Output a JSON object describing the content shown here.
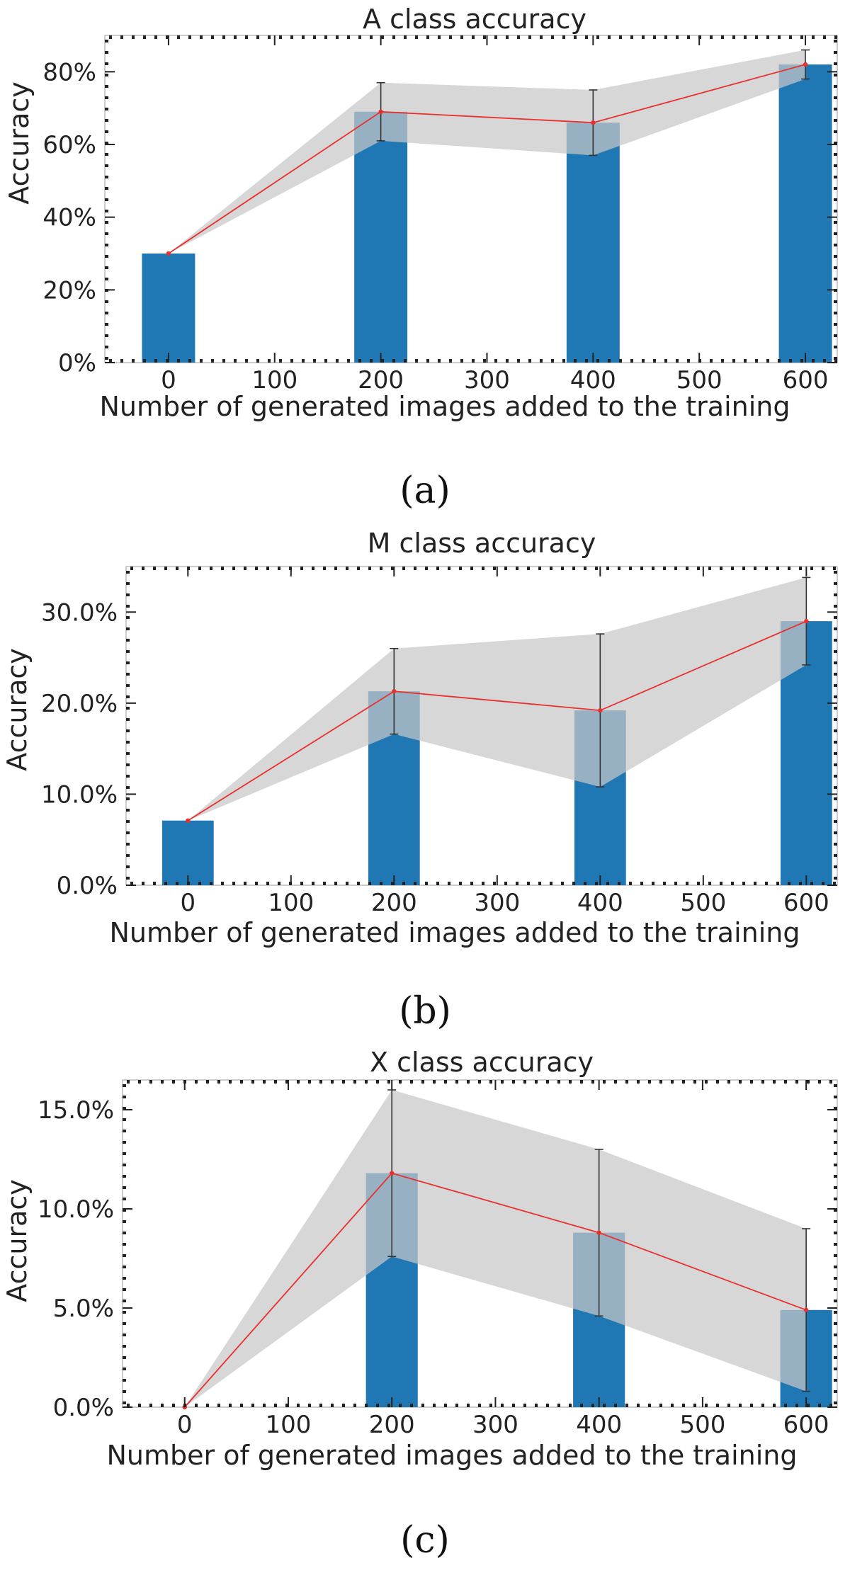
{
  "chart_data": [
    {
      "type": "bar",
      "title": "A class accuracy",
      "xlabel": "Number of generated images added to the training",
      "ylabel": "Accuracy",
      "caption": "(a)",
      "x": [
        0,
        200,
        400,
        600
      ],
      "values": [
        30,
        69,
        66,
        82
      ],
      "error": [
        0,
        8,
        9,
        4
      ],
      "band_lower": [
        30,
        61,
        57,
        78
      ],
      "band_upper": [
        30,
        77,
        75,
        86
      ],
      "xlim": [
        -60,
        630
      ],
      "ylim": [
        0,
        90
      ],
      "xticks": [
        0,
        100,
        200,
        300,
        400,
        500,
        600
      ],
      "yticks": [
        0,
        20,
        40,
        60,
        80
      ],
      "ytick_labels": [
        "0%",
        "20%",
        "40%",
        "60%",
        "80%"
      ],
      "grid": false,
      "colors": {
        "bar": "#1f77b4",
        "line": "#e8312f",
        "band": "#c8c8c8",
        "errorbar": "#333333"
      }
    },
    {
      "type": "bar",
      "title": "M class accuracy",
      "xlabel": "Number of generated images added to the training",
      "ylabel": "Accuracy",
      "caption": "(b)",
      "x": [
        0,
        200,
        400,
        600
      ],
      "values": [
        7.1,
        21.3,
        19.2,
        29.0
      ],
      "error": [
        0,
        4.7,
        8.4,
        4.8
      ],
      "band_lower": [
        7.1,
        16.6,
        10.8,
        24.2
      ],
      "band_upper": [
        7.1,
        26.0,
        27.6,
        33.8
      ],
      "xlim": [
        -60,
        630
      ],
      "ylim": [
        0,
        35
      ],
      "xticks": [
        0,
        100,
        200,
        300,
        400,
        500,
        600
      ],
      "yticks": [
        0,
        10,
        20,
        30
      ],
      "ytick_labels": [
        "0.0%",
        "10.0%",
        "20.0%",
        "30.0%"
      ],
      "grid": false,
      "colors": {
        "bar": "#1f77b4",
        "line": "#e8312f",
        "band": "#c8c8c8",
        "errorbar": "#333333"
      }
    },
    {
      "type": "bar",
      "title": "X class accuracy",
      "xlabel": "Number of generated images added to the training",
      "ylabel": "Accuracy",
      "caption": "(c)",
      "x": [
        0,
        200,
        400,
        600
      ],
      "values": [
        0.0,
        11.8,
        8.8,
        4.9
      ],
      "error": [
        0,
        4.2,
        4.2,
        4.1
      ],
      "band_lower": [
        0.0,
        7.6,
        4.6,
        0.8
      ],
      "band_upper": [
        0.0,
        16.0,
        13.0,
        9.0
      ],
      "xlim": [
        -60,
        630
      ],
      "ylim": [
        0,
        16.5
      ],
      "xticks": [
        0,
        100,
        200,
        300,
        400,
        500,
        600
      ],
      "yticks": [
        0,
        5,
        10,
        15
      ],
      "ytick_labels": [
        "0.0%",
        "5.0%",
        "10.0%",
        "15.0%"
      ],
      "grid": false,
      "colors": {
        "bar": "#1f77b4",
        "line": "#e8312f",
        "band": "#c8c8c8",
        "errorbar": "#333333"
      }
    }
  ]
}
